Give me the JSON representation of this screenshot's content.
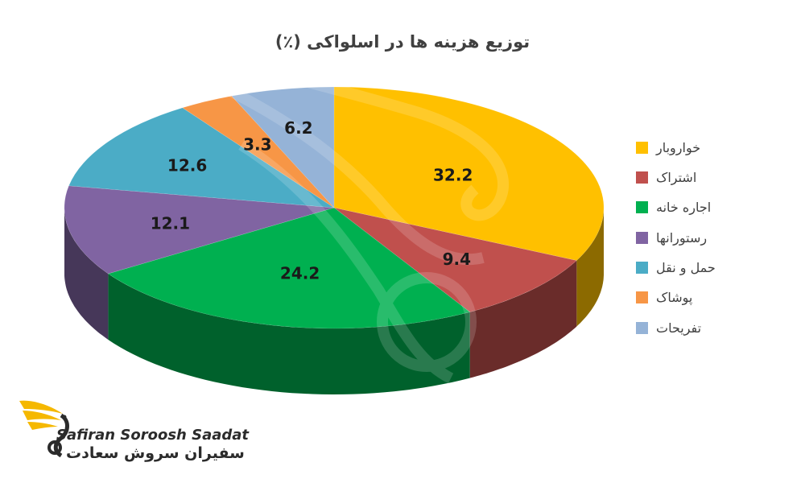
{
  "chart_data": {
    "type": "pie",
    "title": "توزیع هزینه ها در اسلواکی (٪)",
    "categories": [
      "خواروبار",
      "اشتراک",
      "اجاره خانه",
      "رستورانها",
      "حمل و نقل",
      "پوشاک",
      "تفریحات"
    ],
    "values": [
      32.2,
      9.4,
      24.2,
      12.1,
      12.6,
      3.3,
      6.2
    ],
    "value_labels": [
      "32.2",
      "9.4",
      "24.2",
      "12.1",
      "12.6",
      "3.3",
      "6.2"
    ],
    "colors": [
      "#FFC000",
      "#C0504D",
      "#00B050",
      "#8064A2",
      "#4BACC6",
      "#F79646",
      "#95B3D7"
    ],
    "legend_position": "right",
    "style": "3d-tilted"
  },
  "brand": {
    "name_en": "Safiran Soroosh Saadat",
    "name_fa": "سفیران سروش سعادت"
  }
}
